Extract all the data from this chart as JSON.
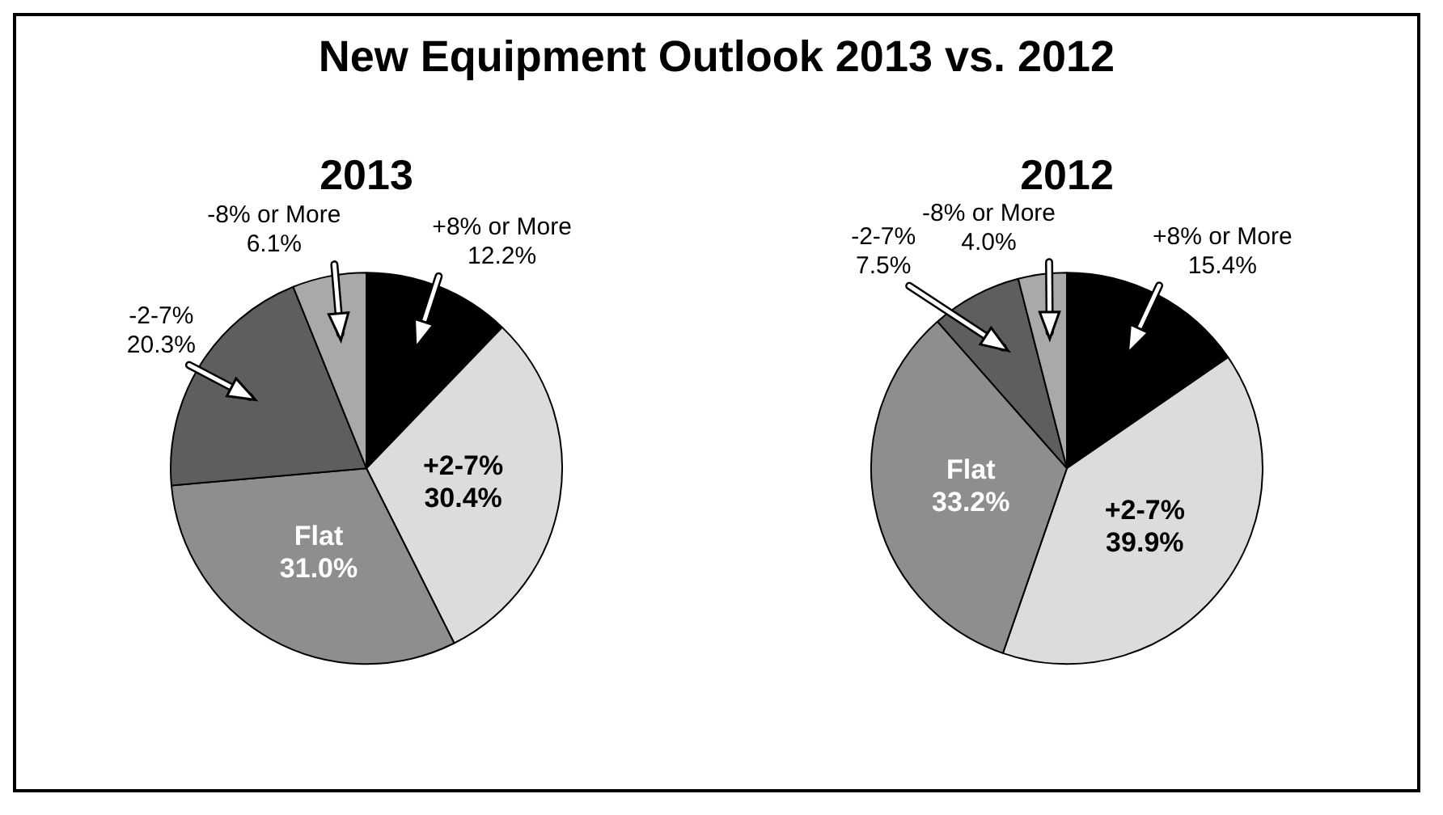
{
  "chart_data": [
    {
      "type": "pie",
      "title": "New Equipment Outlook 2013 vs. 2012",
      "subtitle": "2013",
      "categories": [
        "+8% or More",
        "+2-7%",
        "Flat",
        "-2-7%",
        "-8% or More"
      ],
      "values": [
        12.2,
        30.4,
        31.0,
        20.3,
        6.1
      ],
      "value_labels": [
        "12.2%",
        "30.4%",
        "31.0%",
        "20.3%",
        "6.1%"
      ],
      "colors": [
        "#000000",
        "#dcdcdc",
        "#8e8e8e",
        "#5e5e5e",
        "#a9a9a9"
      ],
      "legend": false
    },
    {
      "type": "pie",
      "title": "2012",
      "categories": [
        "+8% or More",
        "+2-7%",
        "Flat",
        "-2-7%",
        "-8% or More"
      ],
      "values": [
        15.4,
        39.9,
        33.2,
        7.5,
        4.0
      ],
      "value_labels": [
        "15.4%",
        "39.9%",
        "33.2%",
        "7.5%",
        "4.0%"
      ],
      "colors": [
        "#000000",
        "#dcdcdc",
        "#8e8e8e",
        "#5e5e5e",
        "#a9a9a9"
      ],
      "legend": false
    }
  ]
}
